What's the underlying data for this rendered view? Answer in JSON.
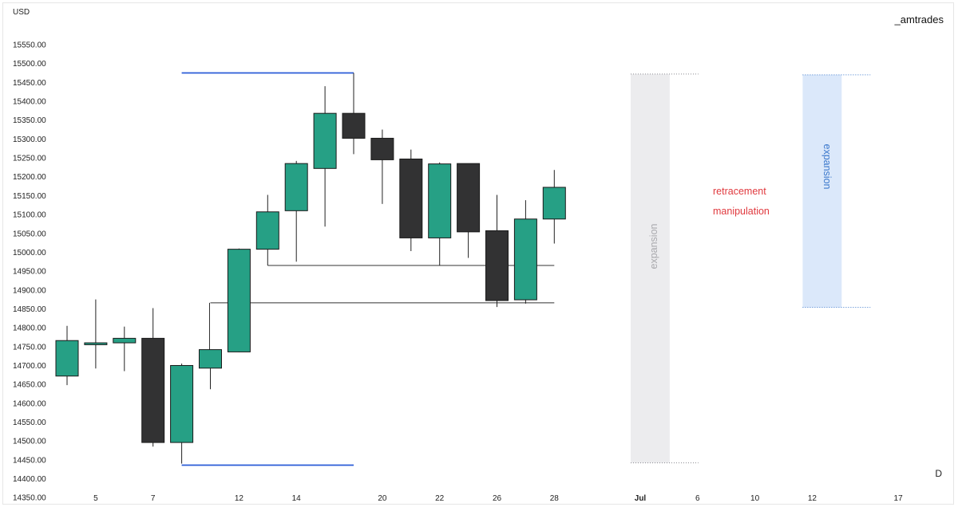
{
  "header": {
    "currency": "USD",
    "brand": "_amtrades"
  },
  "footer": {
    "interval": "D"
  },
  "annotations": {
    "retracement": "retracement",
    "manipulation": "manipulation",
    "expansion_grey": "expansion",
    "expansion_blue": "expansion"
  },
  "colors": {
    "bullish": "#26a085",
    "bearish": "#323233",
    "range_line": "#2a5bd7",
    "grey_zone": "#ececee",
    "blue_zone": "#dbe8fa",
    "text_red": "#e0393e"
  },
  "chart_data": {
    "type": "candlestick",
    "title": "",
    "ylabel": "USD",
    "ylim": [
      14320,
      15575
    ],
    "y_ticks": [
      15550,
      15500,
      15450,
      15400,
      15350,
      15300,
      15250,
      15200,
      15150,
      15100,
      15050,
      15000,
      14950,
      14900,
      14850,
      14800,
      14750,
      14700,
      14650,
      14600,
      14550,
      14500,
      14450,
      14400,
      14350
    ],
    "x_ticks": [
      {
        "label": "5",
        "slot": 1
      },
      {
        "label": "7",
        "slot": 3
      },
      {
        "label": "12",
        "slot": 6
      },
      {
        "label": "14",
        "slot": 8
      },
      {
        "label": "20",
        "slot": 11
      },
      {
        "label": "22",
        "slot": 13
      },
      {
        "label": "26",
        "slot": 15
      },
      {
        "label": "28",
        "slot": 17
      },
      {
        "label": "Jul",
        "slot": 20,
        "bold": true
      },
      {
        "label": "6",
        "slot": 22
      },
      {
        "label": "10",
        "slot": 24
      },
      {
        "label": "12",
        "slot": 26
      },
      {
        "label": "17",
        "slot": 29
      }
    ],
    "candles": [
      {
        "slot": 0,
        "open": 14672,
        "high": 14805,
        "low": 14648,
        "close": 14766
      },
      {
        "slot": 1,
        "open": 14755,
        "high": 14875,
        "low": 14692,
        "close": 14760
      },
      {
        "slot": 2,
        "open": 14760,
        "high": 14803,
        "low": 14685,
        "close": 14772
      },
      {
        "slot": 3,
        "open": 14772,
        "high": 14852,
        "low": 14485,
        "close": 14496
      },
      {
        "slot": 4,
        "open": 14496,
        "high": 14705,
        "low": 14440,
        "close": 14700
      },
      {
        "slot": 5,
        "open": 14693,
        "high": 14742,
        "low": 14637,
        "close": 14742
      },
      {
        "slot": 6,
        "open": 14736,
        "high": 15010,
        "low": 14735,
        "close": 15008
      },
      {
        "slot": 7,
        "open": 15008,
        "high": 15152,
        "low": 14965,
        "close": 15107
      },
      {
        "slot": 8,
        "open": 15110,
        "high": 15242,
        "low": 14975,
        "close": 15235
      },
      {
        "slot": 9,
        "open": 15222,
        "high": 15440,
        "low": 15068,
        "close": 15368
      },
      {
        "slot": 10,
        "open": 15368,
        "high": 15475,
        "low": 15260,
        "close": 15302
      },
      {
        "slot": 11,
        "open": 15302,
        "high": 15325,
        "low": 15128,
        "close": 15245
      },
      {
        "slot": 12,
        "open": 15247,
        "high": 15272,
        "low": 15003,
        "close": 15038
      },
      {
        "slot": 13,
        "open": 15038,
        "high": 15238,
        "low": 14965,
        "close": 15234
      },
      {
        "slot": 14,
        "open": 15235,
        "high": 15235,
        "low": 14985,
        "close": 15054
      },
      {
        "slot": 15,
        "open": 15057,
        "high": 15152,
        "low": 14855,
        "close": 14872
      },
      {
        "slot": 16,
        "open": 14874,
        "high": 15138,
        "low": 14864,
        "close": 15088
      },
      {
        "slot": 17,
        "open": 15088,
        "high": 15218,
        "low": 15023,
        "close": 15172
      }
    ],
    "lines": [
      {
        "kind": "range-high",
        "price": 15475,
        "from_slot": 4,
        "to_slot": 10,
        "color": "#2a5bd7"
      },
      {
        "kind": "range-low",
        "price": 14436,
        "from_slot": 4,
        "to_slot": 10,
        "color": "#2a5bd7"
      },
      {
        "kind": "level",
        "price": 14965,
        "from_slot": 7,
        "to_slot": 17,
        "color": "#333333"
      },
      {
        "kind": "level",
        "price": 14866,
        "from_slot": 5,
        "to_slot": 17,
        "color": "#333333"
      }
    ],
    "zones": [
      {
        "label": "expansion",
        "from_slot": 20,
        "to_slot": 21,
        "top": 15472,
        "bottom": 14442,
        "color": "#ececee"
      },
      {
        "label": "expansion",
        "from_slot": 26,
        "to_slot": 27,
        "top": 15470,
        "bottom": 14854,
        "color": "#dbe8fa"
      }
    ]
  }
}
